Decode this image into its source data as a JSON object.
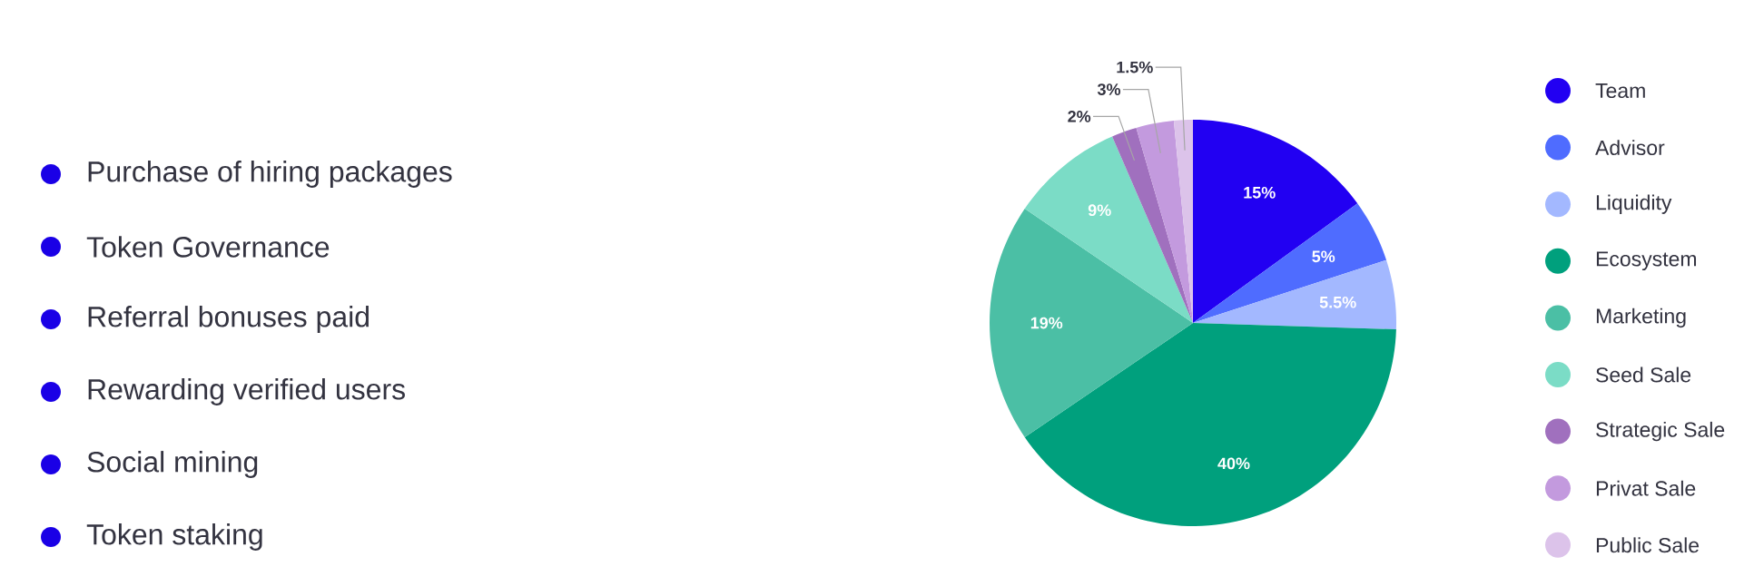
{
  "chart_data": {
    "type": "pie",
    "categories": [
      "Team",
      "Advisor",
      "Liquidity",
      "Ecosystem",
      "Marketing",
      "Seed Sale",
      "Strategic Sale",
      "Privat Sale",
      "Public Sale"
    ],
    "values": [
      15,
      5,
      5.5,
      40,
      19,
      9,
      2,
      3,
      1.5
    ],
    "value_labels": [
      "15%",
      "5%",
      "5.5%",
      "40%",
      "19%",
      "9%",
      "2%",
      "3%",
      "1.5%"
    ],
    "colors": [
      "#2200f2",
      "#4f6cff",
      "#a3b8ff",
      "#00a07d",
      "#4bbfa5",
      "#7bdcc6",
      "#a070be",
      "#c39ade",
      "#dcc3ea"
    ],
    "legend": "right",
    "annotations": [
      "Purchase of hiring packages",
      "Token Governance",
      "Referral bonuses paid",
      "Rewarding verified users",
      "Social mining",
      "Token staking"
    ]
  }
}
